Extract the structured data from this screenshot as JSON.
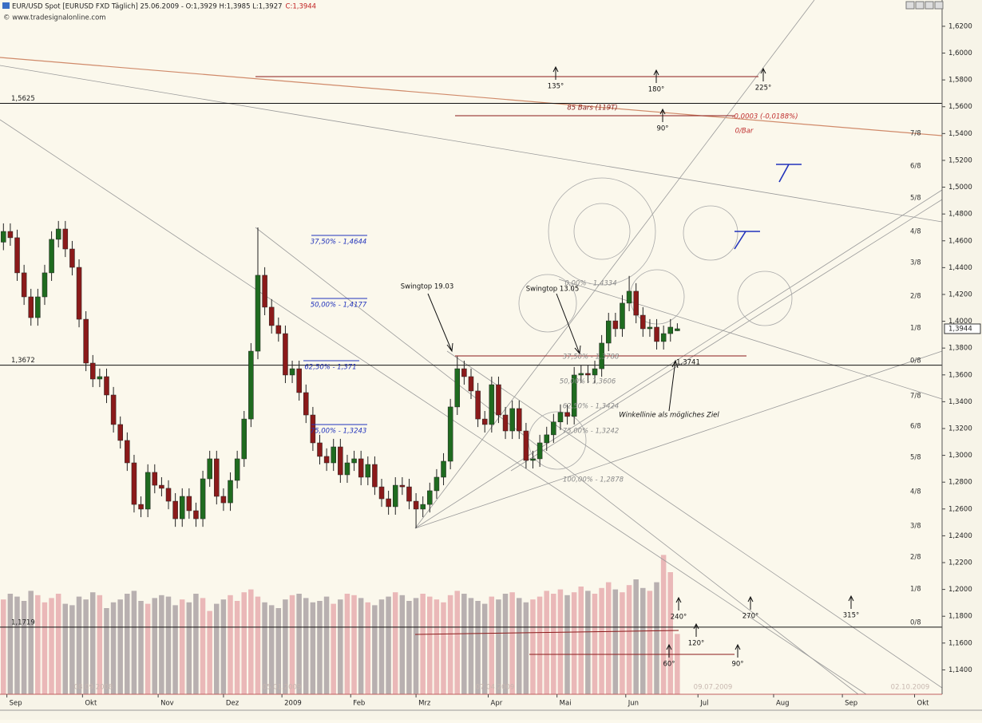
{
  "chart_data": {
    "type": "candlestick",
    "title": "EUR/USD Spot [EURUSD FXD  Täglich] 25.06.2009 - O:1,3929 H:1,3985 L:1,3927",
    "title_close": "C:1,3944",
    "watermark": "© www.tradesignalonline.com",
    "up_color": "#1f6b1f",
    "down_color": "#8b1a1a",
    "xlim": [
      0,
      274
    ],
    "xticks": [
      {
        "value": 2,
        "label": "Sep"
      },
      {
        "value": 24,
        "label": "Okt"
      },
      {
        "value": 46,
        "label": "Nov"
      },
      {
        "value": 65,
        "label": "Dez"
      },
      {
        "value": 82,
        "label": "2009"
      },
      {
        "value": 102,
        "label": "Feb"
      },
      {
        "value": 121,
        "label": "Mrz"
      },
      {
        "value": 142,
        "label": "Apr"
      },
      {
        "value": 162,
        "label": "Mai"
      },
      {
        "value": 182,
        "label": "Jun"
      },
      {
        "value": 203,
        "label": "Jul"
      },
      {
        "value": 225,
        "label": "Aug"
      },
      {
        "value": 245,
        "label": "Sep"
      },
      {
        "value": 266,
        "label": "Okt"
      }
    ],
    "ylim": [
      1.1218,
      1.6396
    ],
    "yticks": [
      {
        "value": 1.14,
        "label": "1,1400"
      },
      {
        "value": 1.16,
        "label": "1,1600"
      },
      {
        "value": 1.18,
        "label": "1,1800"
      },
      {
        "value": 1.2,
        "label": "1,2000"
      },
      {
        "value": 1.22,
        "label": "1,2200"
      },
      {
        "value": 1.24,
        "label": "1,2400"
      },
      {
        "value": 1.26,
        "label": "1,2600"
      },
      {
        "value": 1.28,
        "label": "1,2800"
      },
      {
        "value": 1.3,
        "label": "1,3000"
      },
      {
        "value": 1.32,
        "label": "1,3200"
      },
      {
        "value": 1.34,
        "label": "1,3400"
      },
      {
        "value": 1.36,
        "label": "1,3600"
      },
      {
        "value": 1.38,
        "label": "1,3800"
      },
      {
        "value": 1.4,
        "label": "1,4000"
      },
      {
        "value": 1.42,
        "label": "1,4200"
      },
      {
        "value": 1.44,
        "label": "1,4400"
      },
      {
        "value": 1.46,
        "label": "1,4600"
      },
      {
        "value": 1.48,
        "label": "1,4800"
      },
      {
        "value": 1.5,
        "label": "1,5000"
      },
      {
        "value": 1.52,
        "label": "1,5200"
      },
      {
        "value": 1.54,
        "label": "1,5400"
      },
      {
        "value": 1.56,
        "label": "1,5600"
      },
      {
        "value": 1.58,
        "label": "1,5800"
      },
      {
        "value": 1.6,
        "label": "1,6000"
      },
      {
        "value": 1.62,
        "label": "1,6200"
      }
    ],
    "last_price": {
      "value": 1.3944,
      "label": "1,3944"
    },
    "levels": [
      {
        "value": 1.5625,
        "label": "1,5625"
      },
      {
        "value": 1.3672,
        "label": "1,3672"
      },
      {
        "value": 1.1719,
        "label": "1,1719"
      }
    ],
    "x": [
      0,
      2,
      4,
      6,
      8,
      10,
      12,
      14,
      16,
      18,
      20,
      22,
      24,
      26,
      28,
      30,
      32,
      34,
      36,
      38,
      40,
      42,
      44,
      46,
      48,
      50,
      52,
      54,
      56,
      58,
      60,
      62,
      64,
      66,
      68,
      70,
      72,
      74,
      76,
      78,
      80,
      82,
      84,
      86,
      88,
      90,
      92,
      94,
      96,
      98,
      100,
      102,
      104,
      106,
      108,
      110,
      112,
      114,
      116,
      118,
      120,
      122,
      124,
      126,
      128,
      130,
      132,
      134,
      136,
      138,
      140,
      142,
      144,
      146,
      148,
      150,
      152,
      154,
      156,
      158,
      160,
      162,
      164,
      166,
      168,
      170,
      172,
      174,
      176,
      178,
      180,
      182,
      184,
      186,
      188,
      190,
      192,
      194,
      196
    ],
    "open": [
      1.459,
      1.467,
      1.4623,
      1.4361,
      1.4182,
      1.4027,
      1.4182,
      1.4361,
      1.4611,
      1.4688,
      1.4539,
      1.4402,
      1.4015,
      1.3688,
      1.3569,
      1.3587,
      1.345,
      1.323,
      1.3111,
      1.2944,
      1.2634,
      1.2599,
      1.2873,
      1.2777,
      1.2754,
      1.2658,
      1.2527,
      1.2694,
      1.2587,
      1.2527,
      1.2825,
      1.2974,
      1.2694,
      1.2646,
      1.2813,
      1.2974,
      1.3271,
      1.3777,
      1.4343,
      1.4105,
      1.3968,
      1.3908,
      1.3599,
      1.3646,
      1.3468,
      1.3301,
      1.3093,
      1.2992,
      1.2944,
      1.3063,
      1.2855,
      1.2944,
      1.2974,
      1.2837,
      1.2932,
      1.2765,
      1.2676,
      1.2617,
      1.2777,
      1.2765,
      1.2658,
      1.2599,
      1.2634,
      1.2736,
      1.2837,
      1.2956,
      1.3361,
      1.3646,
      1.3587,
      1.348,
      1.3271,
      1.323,
      1.3527,
      1.3301,
      1.3182,
      1.3349,
      1.3182,
      1.2962,
      1.2974,
      1.3093,
      1.3153,
      1.3249,
      1.332,
      1.329,
      1.3599,
      1.3611,
      1.3599,
      1.3646,
      1.3837,
      1.4003,
      1.3944,
      1.4135,
      1.4224,
      1.4045,
      1.3944,
      1.3956,
      1.3849,
      1.3908,
      1.3929
    ],
    "high": [
      1.473,
      1.473,
      1.4683,
      1.4421,
      1.4242,
      1.4242,
      1.4421,
      1.4671,
      1.4748,
      1.4748,
      1.4599,
      1.4462,
      1.4075,
      1.3748,
      1.3647,
      1.3647,
      1.351,
      1.329,
      1.3171,
      1.3004,
      1.2694,
      1.2933,
      1.2933,
      1.2837,
      1.2814,
      1.2718,
      1.2754,
      1.2754,
      1.2647,
      1.2885,
      1.3034,
      1.3034,
      1.2754,
      1.2873,
      1.3034,
      1.3331,
      1.3837,
      1.47,
      1.4403,
      1.4165,
      1.4028,
      1.3968,
      1.3706,
      1.3706,
      1.3528,
      1.3361,
      1.3153,
      1.3052,
      1.3123,
      1.3123,
      1.3004,
      1.3034,
      1.3034,
      1.2992,
      1.2992,
      1.2825,
      1.2736,
      1.2837,
      1.2837,
      1.2825,
      1.2718,
      1.2694,
      1.2796,
      1.2897,
      1.3016,
      1.3421,
      1.3738,
      1.3706,
      1.3647,
      1.354,
      1.3331,
      1.3587,
      1.3587,
      1.3361,
      1.3409,
      1.3409,
      1.3242,
      1.3034,
      1.3153,
      1.3213,
      1.3309,
      1.338,
      1.338,
      1.3659,
      1.3671,
      1.3671,
      1.3706,
      1.3897,
      1.4063,
      1.4063,
      1.4195,
      1.4338,
      1.4284,
      1.4105,
      1.4016,
      1.4016,
      1.3968,
      1.4016,
      1.3985
    ],
    "low": [
      1.453,
      1.4563,
      1.4301,
      1.4122,
      1.3967,
      1.3967,
      1.4122,
      1.4301,
      1.4551,
      1.4479,
      1.4342,
      1.3955,
      1.3628,
      1.3509,
      1.3509,
      1.339,
      1.317,
      1.3051,
      1.2884,
      1.2574,
      1.2539,
      1.2539,
      1.2717,
      1.2694,
      1.2598,
      1.2467,
      1.2467,
      1.2527,
      1.2467,
      1.2467,
      1.2765,
      1.2634,
      1.2586,
      1.2586,
      1.2753,
      1.2914,
      1.3211,
      1.3717,
      1.4045,
      1.3908,
      1.3848,
      1.3539,
      1.3539,
      1.3408,
      1.3241,
      1.3033,
      1.2932,
      1.2884,
      1.2884,
      1.2795,
      1.2795,
      1.2884,
      1.2777,
      1.2777,
      1.2705,
      1.2616,
      1.2557,
      1.2557,
      1.2705,
      1.2598,
      1.2457,
      1.2539,
      1.2574,
      1.2676,
      1.2777,
      1.2896,
      1.3301,
      1.3527,
      1.342,
      1.3211,
      1.317,
      1.317,
      1.3241,
      1.3122,
      1.3122,
      1.3122,
      1.2902,
      1.2902,
      1.2914,
      1.3033,
      1.3093,
      1.3189,
      1.323,
      1.323,
      1.3539,
      1.3539,
      1.3539,
      1.3586,
      1.3777,
      1.3884,
      1.3884,
      1.4075,
      1.3985,
      1.3884,
      1.3884,
      1.3789,
      1.3789,
      1.3848,
      1.3927
    ],
    "close": [
      1.467,
      1.4623,
      1.4361,
      1.4182,
      1.4027,
      1.4182,
      1.4361,
      1.4611,
      1.4688,
      1.4539,
      1.4402,
      1.4015,
      1.3688,
      1.3569,
      1.3587,
      1.345,
      1.323,
      1.3111,
      1.2944,
      1.2634,
      1.2599,
      1.2873,
      1.2777,
      1.2754,
      1.2658,
      1.2527,
      1.2694,
      1.2587,
      1.2527,
      1.2825,
      1.2974,
      1.2694,
      1.2646,
      1.2813,
      1.2974,
      1.3271,
      1.3777,
      1.4343,
      1.4105,
      1.3968,
      1.3908,
      1.3599,
      1.3646,
      1.3468,
      1.3301,
      1.3093,
      1.2992,
      1.2944,
      1.3063,
      1.2855,
      1.2944,
      1.2974,
      1.2837,
      1.2932,
      1.2765,
      1.2676,
      1.2617,
      1.2777,
      1.2765,
      1.2658,
      1.2599,
      1.2634,
      1.2736,
      1.2837,
      1.2956,
      1.3361,
      1.3646,
      1.3587,
      1.348,
      1.3271,
      1.323,
      1.3527,
      1.3301,
      1.3182,
      1.3349,
      1.3182,
      1.2962,
      1.2974,
      1.3093,
      1.3153,
      1.3249,
      1.332,
      1.329,
      1.3599,
      1.3611,
      1.3599,
      1.3646,
      1.3837,
      1.4003,
      1.3944,
      1.4135,
      1.4224,
      1.4045,
      1.3944,
      1.3956,
      1.3849,
      1.3908,
      1.3956,
      1.3944
    ],
    "volume": {
      "ylim": [
        0,
        100
      ],
      "up_color": "#eab8b8",
      "down_color": "#b8b0b0",
      "values": [
        66,
        70,
        68,
        65,
        72,
        69,
        64,
        67,
        70,
        63,
        62,
        68,
        66,
        71,
        69,
        60,
        64,
        66,
        70,
        72,
        65,
        63,
        67,
        69,
        68,
        62,
        66,
        64,
        70,
        67,
        58,
        63,
        66,
        69,
        65,
        71,
        73,
        68,
        64,
        62,
        60,
        66,
        69,
        70,
        67,
        64,
        65,
        68,
        63,
        66,
        70,
        69,
        67,
        64,
        62,
        66,
        68,
        71,
        69,
        65,
        67,
        70,
        68,
        66,
        64,
        69,
        72,
        70,
        67,
        65,
        63,
        68,
        66,
        70,
        71,
        67,
        64,
        66,
        68,
        72,
        70,
        73,
        69,
        71,
        75,
        72,
        70,
        74,
        78,
        73,
        71,
        76,
        80,
        74,
        72,
        78,
        97,
        85,
        42
      ]
    },
    "date_labels": [
      "08.09.2008",
      "05.01.2009",
      "07.04.2009",
      "09.07.2009",
      "02.10.2009"
    ],
    "octave_labels": [
      "7/8",
      "6/8",
      "5/8",
      "4/8",
      "3/8",
      "2/8",
      "1/8",
      "0/8",
      "7/8",
      "6/8",
      "5/8",
      "4/8",
      "3/8",
      "2/8",
      "1/8",
      "0/8"
    ],
    "annotations": [
      "135°",
      "180°",
      "225°",
      "90°",
      "85 Bars (119T)",
      "-0,0003 (-0,0188%)",
      "0/Bar",
      "Swingtop 19.03",
      "Swingtop 13.05",
      "37,50% - 1,4644",
      "50,00% - 1,4177",
      "62,50% - 1,371",
      "75,00% - 1,3243",
      "0,00% - 1,4334",
      "37,50% - 1,3788",
      "50,00% - 1,3606",
      "62,50% - 1,3424",
      "75,00% - 1,3242",
      "100,00% - 1,2878",
      "1,3741",
      "Winkellinie als mögliches Ziel",
      "240°",
      "270°",
      "315°",
      "120°",
      "60°",
      "90°"
    ]
  }
}
